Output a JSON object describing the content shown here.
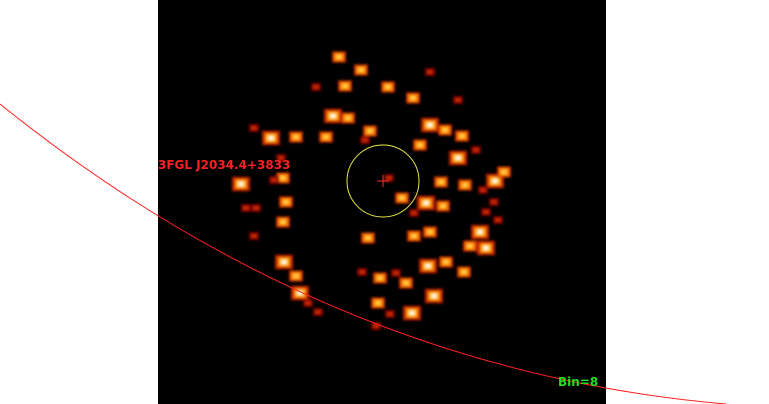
{
  "image": {
    "description_colormap": "heat",
    "background_color": "#000000"
  },
  "source": {
    "label": "3FGL J2034.4+3833",
    "label_color": "#ff2020",
    "marker_icon": "crosshair-icon",
    "marker_color": "#ff3030",
    "region_icon": "circle-region-icon",
    "region_color": "#e6e64a"
  },
  "status": {
    "bin_label": "Bin=8",
    "bin_color": "#22dd22"
  },
  "overlay": {
    "arc_color": "#ff2020"
  },
  "colors": {
    "hot_white": "#ffffff",
    "hot_yellow": "#ffd040",
    "hot_orange": "#ff8000",
    "hot_red": "#c02000",
    "dim_red": "#700000"
  }
}
